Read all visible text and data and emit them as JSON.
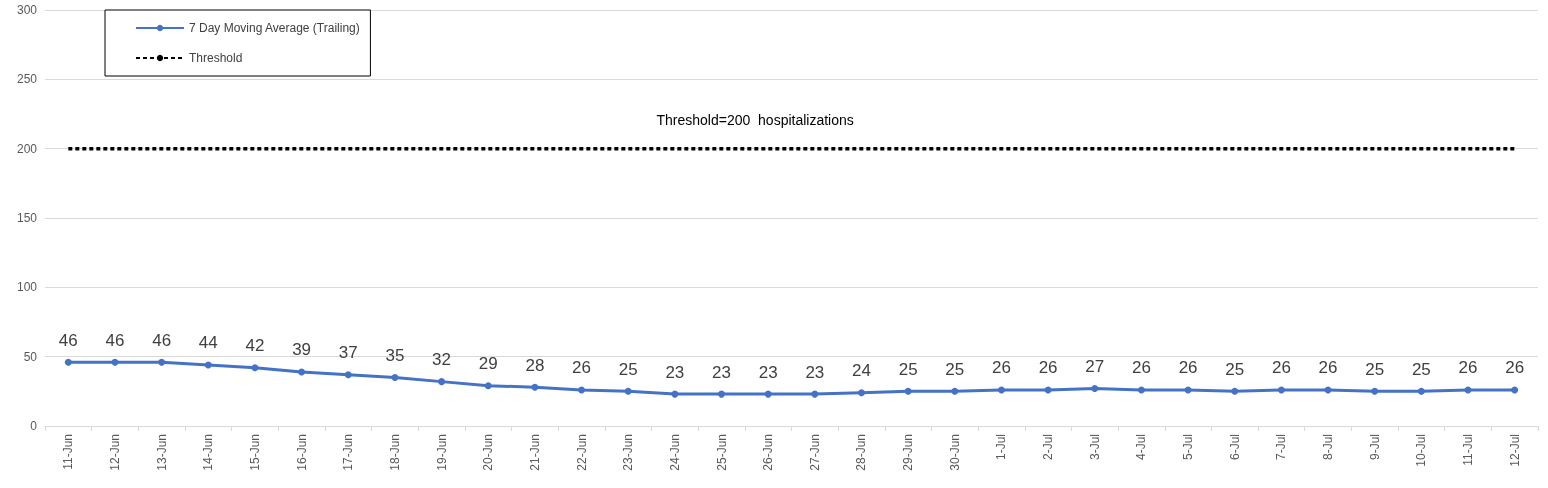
{
  "chart_data": {
    "type": "line",
    "categories": [
      "11-Jun",
      "12-Jun",
      "13-Jun",
      "14-Jun",
      "15-Jun",
      "16-Jun",
      "17-Jun",
      "18-Jun",
      "19-Jun",
      "20-Jun",
      "21-Jun",
      "22-Jun",
      "23-Jun",
      "24-Jun",
      "25-Jun",
      "26-Jun",
      "27-Jun",
      "28-Jun",
      "29-Jun",
      "30-Jun",
      "1-Jul",
      "2-Jul",
      "3-Jul",
      "4-Jul",
      "5-Jul",
      "6-Jul",
      "7-Jul",
      "8-Jul",
      "9-Jul",
      "10-Jul",
      "11-Jul",
      "12-Jul"
    ],
    "series": [
      {
        "name": "7 Day Moving Average (Trailing)",
        "color": "#4472c4",
        "marker": "circle",
        "line_style": "solid",
        "data_labels": true,
        "values": [
          46,
          46,
          46,
          44,
          42,
          39,
          37,
          35,
          32,
          29,
          28,
          26,
          25,
          23,
          23,
          23,
          23,
          24,
          25,
          25,
          26,
          26,
          27,
          26,
          26,
          25,
          26,
          26,
          25,
          25,
          26,
          26
        ]
      },
      {
        "name": "Threshold",
        "color": "#000000",
        "marker": "none",
        "line_style": "dashed",
        "values": [
          200,
          200,
          200,
          200,
          200,
          200,
          200,
          200,
          200,
          200,
          200,
          200,
          200,
          200,
          200,
          200,
          200,
          200,
          200,
          200,
          200,
          200,
          200,
          200,
          200,
          200,
          200,
          200,
          200,
          200,
          200,
          200
        ]
      }
    ],
    "annotations": [
      {
        "text": "Threshold=200  hospitalizations",
        "y": 200
      }
    ],
    "ylim": [
      0,
      300
    ],
    "yticks": [
      0,
      50,
      100,
      150,
      200,
      250,
      300
    ],
    "grid": "y",
    "legend": "top left"
  }
}
